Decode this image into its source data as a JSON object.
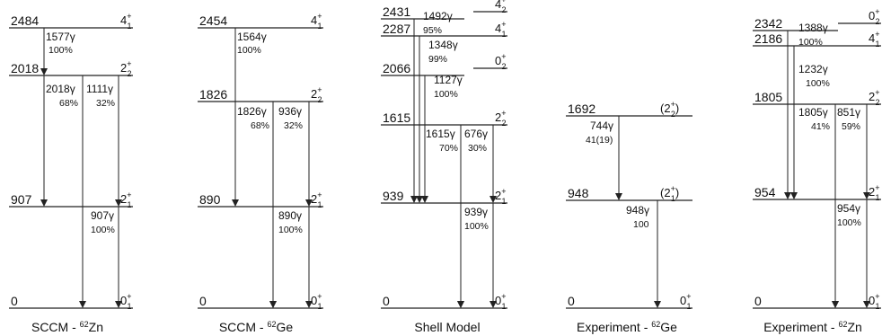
{
  "schemes": [
    {
      "caption": {
        "prefix": "SCCM - ",
        "mass": "62",
        "element": "Zn"
      },
      "levels": [
        {
          "energy": "0",
          "spin": "0",
          "sub": "1",
          "paren": false
        },
        {
          "energy": "907",
          "spin": "2",
          "sub": "1",
          "paren": false
        },
        {
          "energy": "2018",
          "spin": "2",
          "sub": "2",
          "paren": false
        },
        {
          "energy": "2484",
          "spin": "4",
          "sub": "1",
          "paren": false
        }
      ],
      "transitions": [
        {
          "label": "1577γ",
          "branch": "100%"
        },
        {
          "label": "2018γ",
          "branch": "68%"
        },
        {
          "label": "1111γ",
          "branch": "32%"
        },
        {
          "label": "907γ",
          "branch": "100%"
        }
      ]
    },
    {
      "caption": {
        "prefix": "SCCM - ",
        "mass": "62",
        "element": "Ge"
      },
      "levels": [
        {
          "energy": "0",
          "spin": "0",
          "sub": "1",
          "paren": false
        },
        {
          "energy": "890",
          "spin": "2",
          "sub": "1",
          "paren": false
        },
        {
          "energy": "1826",
          "spin": "2",
          "sub": "2",
          "paren": false
        },
        {
          "energy": "2454",
          "spin": "4",
          "sub": "1",
          "paren": false
        }
      ],
      "transitions": [
        {
          "label": "1564γ",
          "branch": "100%"
        },
        {
          "label": "1826γ",
          "branch": "68%"
        },
        {
          "label": "936γ",
          "branch": "32%"
        },
        {
          "label": "890γ",
          "branch": "100%"
        }
      ]
    },
    {
      "caption": {
        "prefix": "Shell Model",
        "mass": "",
        "element": ""
      },
      "levels": [
        {
          "energy": "0",
          "spin": "0",
          "sub": "1",
          "paren": false
        },
        {
          "energy": "939",
          "spin": "2",
          "sub": "1",
          "paren": false
        },
        {
          "energy": "1615",
          "spin": "2",
          "sub": "2",
          "paren": false
        },
        {
          "energy": "2066",
          "spin": "0",
          "sub": "2",
          "paren": false
        },
        {
          "energy": "2287",
          "spin": "4",
          "sub": "1",
          "paren": false
        },
        {
          "energy": "2431",
          "spin": "4",
          "sub": "2",
          "paren": false
        }
      ],
      "transitions": [
        {
          "label": "1492γ",
          "branch": "95%"
        },
        {
          "label": "1348γ",
          "branch": "99%"
        },
        {
          "label": "1127γ",
          "branch": "100%"
        },
        {
          "label": "1615γ",
          "branch": "70%"
        },
        {
          "label": "676γ",
          "branch": "30%"
        },
        {
          "label": "939γ",
          "branch": "100%"
        }
      ]
    },
    {
      "caption": {
        "prefix": "Experiment - ",
        "mass": "62",
        "element": "Ge"
      },
      "levels": [
        {
          "energy": "0",
          "spin": "0",
          "sub": "1",
          "paren": false
        },
        {
          "energy": "948",
          "spin": "2",
          "sub": "1",
          "paren": true
        },
        {
          "energy": "1692",
          "spin": "2",
          "sub": "2",
          "paren": true
        }
      ],
      "transitions": [
        {
          "label": "744γ",
          "branch": "41(19)"
        },
        {
          "label": "948γ",
          "branch": "100"
        }
      ]
    },
    {
      "caption": {
        "prefix": "Experiment - ",
        "mass": "62",
        "element": "Zn"
      },
      "levels": [
        {
          "energy": "0",
          "spin": "0",
          "sub": "1",
          "paren": false
        },
        {
          "energy": "954",
          "spin": "2",
          "sub": "1",
          "paren": false
        },
        {
          "energy": "1805",
          "spin": "2",
          "sub": "2",
          "paren": false
        },
        {
          "energy": "2186",
          "spin": "4",
          "sub": "1",
          "paren": false
        },
        {
          "energy": "2342",
          "spin": "0",
          "sub": "2",
          "paren": false
        }
      ],
      "transitions": [
        {
          "label": "1388γ",
          "branch": "100%"
        },
        {
          "label": "1232γ",
          "branch": "100%"
        },
        {
          "label": "1805γ",
          "branch": "41%"
        },
        {
          "label": "851γ",
          "branch": "59%"
        },
        {
          "label": "954γ",
          "branch": "100%"
        }
      ]
    }
  ]
}
